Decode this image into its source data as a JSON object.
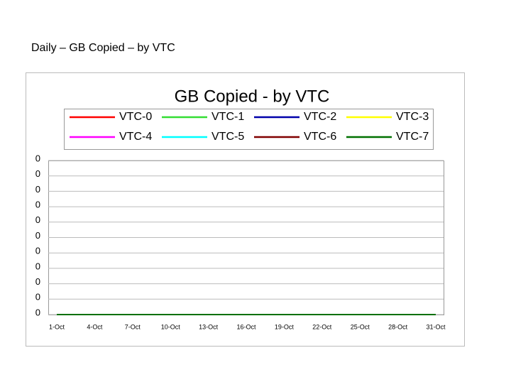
{
  "heading": "Daily – GB Copied – by VTC",
  "chart_data": {
    "type": "line",
    "title": "GB Copied - by VTC",
    "categories": [
      "1-Oct",
      null,
      null,
      "4-Oct",
      null,
      null,
      "7-Oct",
      null,
      null,
      "10-Oct",
      null,
      null,
      "13-Oct",
      null,
      null,
      "16-Oct",
      null,
      null,
      "19-Oct",
      null,
      null,
      "22-Oct",
      null,
      null,
      "25-Oct",
      null,
      null,
      "28-Oct",
      null,
      null,
      "31-Oct"
    ],
    "series": [
      {
        "name": "VTC-0",
        "color": "#ff0000",
        "values": [
          0,
          0,
          0,
          0,
          0,
          0,
          0,
          0,
          0,
          0,
          0,
          0,
          0,
          0,
          0,
          0,
          0,
          0,
          0,
          0,
          0,
          0,
          0,
          0,
          0,
          0,
          0,
          0,
          0,
          0,
          0
        ]
      },
      {
        "name": "VTC-1",
        "color": "#33dd33",
        "values": [
          0,
          0,
          0,
          0,
          0,
          0,
          0,
          0,
          0,
          0,
          0,
          0,
          0,
          0,
          0,
          0,
          0,
          0,
          0,
          0,
          0,
          0,
          0,
          0,
          0,
          0,
          0,
          0,
          0,
          0,
          0
        ]
      },
      {
        "name": "VTC-2",
        "color": "#0000aa",
        "values": [
          0,
          0,
          0,
          0,
          0,
          0,
          0,
          0,
          0,
          0,
          0,
          0,
          0,
          0,
          0,
          0,
          0,
          0,
          0,
          0,
          0,
          0,
          0,
          0,
          0,
          0,
          0,
          0,
          0,
          0,
          0
        ]
      },
      {
        "name": "VTC-3",
        "color": "#ffff00",
        "values": [
          0,
          0,
          0,
          0,
          0,
          0,
          0,
          0,
          0,
          0,
          0,
          0,
          0,
          0,
          0,
          0,
          0,
          0,
          0,
          0,
          0,
          0,
          0,
          0,
          0,
          0,
          0,
          0,
          0,
          0,
          0
        ]
      },
      {
        "name": "VTC-4",
        "color": "#ff00ff",
        "values": [
          0,
          0,
          0,
          0,
          0,
          0,
          0,
          0,
          0,
          0,
          0,
          0,
          0,
          0,
          0,
          0,
          0,
          0,
          0,
          0,
          0,
          0,
          0,
          0,
          0,
          0,
          0,
          0,
          0,
          0,
          0
        ]
      },
      {
        "name": "VTC-5",
        "color": "#00ffff",
        "values": [
          0,
          0,
          0,
          0,
          0,
          0,
          0,
          0,
          0,
          0,
          0,
          0,
          0,
          0,
          0,
          0,
          0,
          0,
          0,
          0,
          0,
          0,
          0,
          0,
          0,
          0,
          0,
          0,
          0,
          0,
          0
        ]
      },
      {
        "name": "VTC-6",
        "color": "#800000",
        "values": [
          0,
          0,
          0,
          0,
          0,
          0,
          0,
          0,
          0,
          0,
          0,
          0,
          0,
          0,
          0,
          0,
          0,
          0,
          0,
          0,
          0,
          0,
          0,
          0,
          0,
          0,
          0,
          0,
          0,
          0,
          0
        ]
      },
      {
        "name": "VTC-7",
        "color": "#007000",
        "values": [
          0,
          0,
          0,
          0,
          0,
          0,
          0,
          0,
          0,
          0,
          0,
          0,
          0,
          0,
          0,
          0,
          0,
          0,
          0,
          0,
          0,
          0,
          0,
          0,
          0,
          0,
          0,
          0,
          0,
          0,
          0
        ]
      }
    ],
    "ylim": [
      0,
      0.001
    ],
    "yticks": [
      0,
      {
        "value": 0.0001,
        "label": "0"
      },
      {
        "value": 0.0002,
        "label": "0"
      },
      {
        "value": 0.0003,
        "label": "0"
      },
      {
        "value": 0.0004,
        "label": "0"
      },
      {
        "value": 0.0005,
        "label": "0"
      },
      {
        "value": 0.0006,
        "label": "0"
      },
      {
        "value": 0.0007,
        "label": "0"
      },
      {
        "value": 0.0008,
        "label": "0"
      },
      {
        "value": 0.0009,
        "label": "0"
      },
      {
        "value": 0.001,
        "label": "0"
      }
    ],
    "grid": true,
    "legend": "top"
  }
}
